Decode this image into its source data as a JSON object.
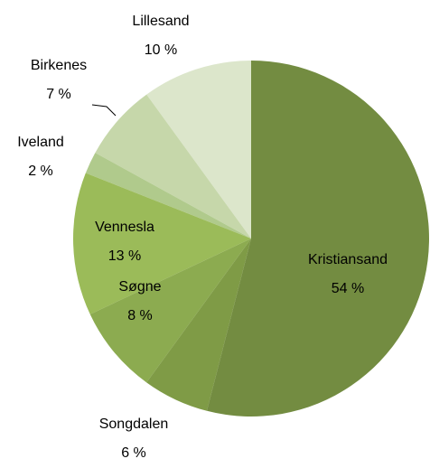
{
  "chart_data": {
    "type": "pie",
    "categories": [
      "Kristiansand",
      "Songdalen",
      "Søgne",
      "Vennesla",
      "Iveland",
      "Birkenes",
      "Lillesand"
    ],
    "values": [
      54,
      6,
      8,
      13,
      2,
      7,
      10
    ],
    "value_labels": [
      "54 %",
      "6 %",
      "8 %",
      "13 %",
      "2 %",
      "7 %",
      "10 %"
    ],
    "colors": [
      "#738c41",
      "#7f9b46",
      "#8cab50",
      "#9bbb59",
      "#b0ca8c",
      "#c6d7aa",
      "#dce6cb"
    ]
  }
}
